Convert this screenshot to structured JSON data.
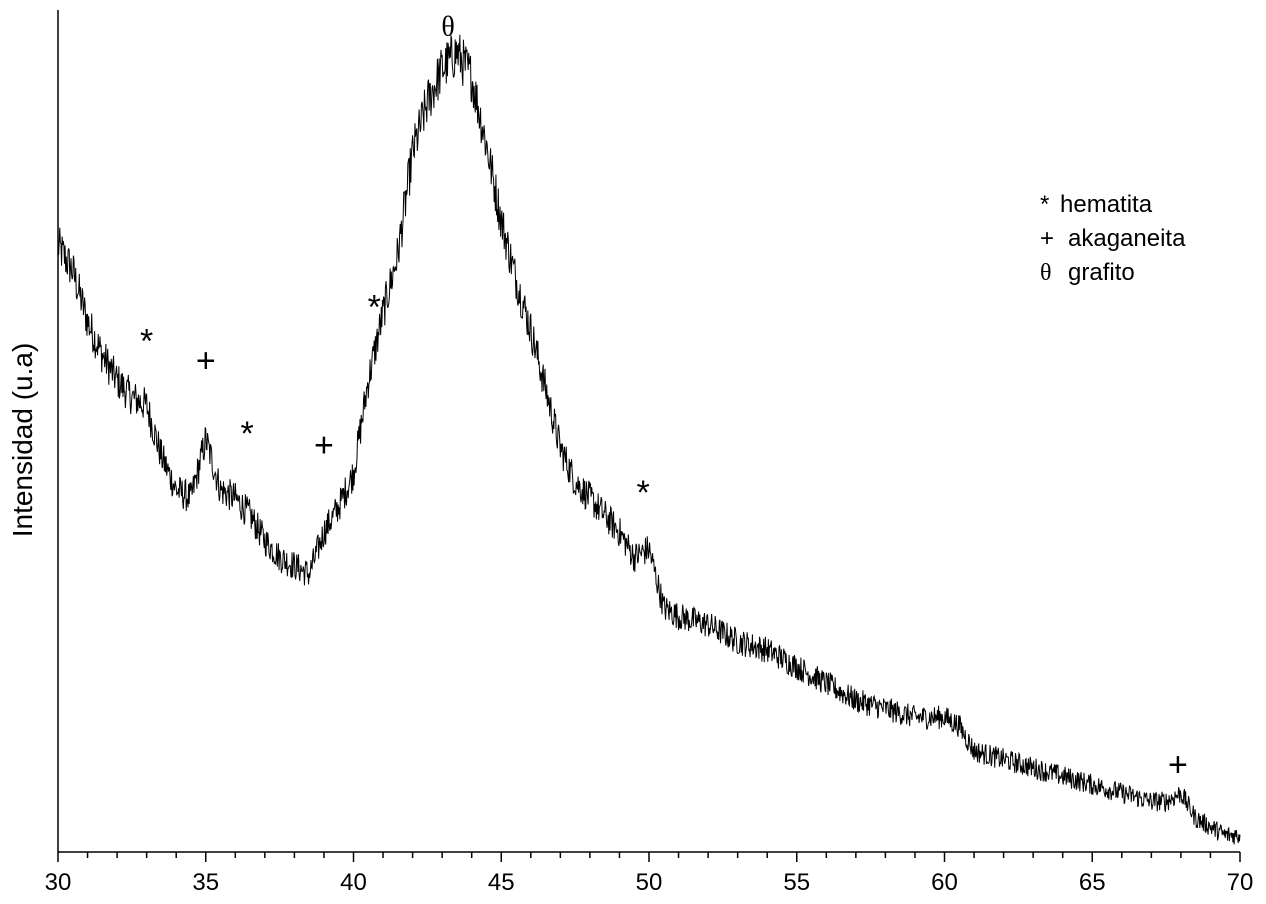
{
  "chart_data": {
    "type": "line",
    "title": "",
    "xlabel": "",
    "ylabel": "Intensidad (u.a)",
    "xlim": [
      30,
      70
    ],
    "ylim": [
      0,
      100
    ],
    "x_ticks": [
      "30",
      "35",
      "40",
      "45",
      "50",
      "55",
      "60",
      "65",
      "70"
    ],
    "x_minor_step": 1,
    "y_ticks_shown": false,
    "grid": false,
    "legend_position": "top-right",
    "legend": [
      {
        "symbol": "*",
        "label": "hematita"
      },
      {
        "symbol": "+",
        "label": "akaganeita"
      },
      {
        "symbol": "θ",
        "label": "grafito"
      }
    ],
    "annotations": [
      {
        "symbol": "*",
        "x": 33.0,
        "y": 61
      },
      {
        "symbol": "+",
        "x": 35.0,
        "y": 57
      },
      {
        "symbol": "*",
        "x": 36.4,
        "y": 50
      },
      {
        "symbol": "+",
        "x": 39.0,
        "y": 47
      },
      {
        "symbol": "*",
        "x": 40.7,
        "y": 65
      },
      {
        "symbol": "θ",
        "x": 43.2,
        "y": 97
      },
      {
        "symbol": "*",
        "x": 49.8,
        "y": 43
      },
      {
        "symbol": "+",
        "x": 67.9,
        "y": 9
      }
    ],
    "series": [
      {
        "values_x": [
          30,
          30.5,
          31,
          31.5,
          32,
          32.5,
          33,
          33.5,
          34,
          34.5,
          35,
          35.5,
          36,
          36.5,
          37,
          37.5,
          38,
          38.5,
          39,
          39.5,
          40,
          40.5,
          41,
          41.5,
          42,
          42.5,
          43,
          43.5,
          44,
          44.5,
          45,
          45.5,
          46,
          46.5,
          47,
          47.5,
          48,
          48.5,
          49,
          49.5,
          50,
          50.5,
          51,
          52,
          53,
          54,
          55,
          56,
          57,
          58,
          59,
          60,
          60.5,
          61,
          62,
          63,
          64,
          65,
          66,
          67,
          67.5,
          68,
          68.5,
          69,
          69.5,
          70
        ],
        "values_y": [
          72,
          69,
          63,
          59,
          56,
          54,
          53,
          47,
          43,
          42,
          49,
          43,
          42,
          40,
          37,
          35,
          34,
          33,
          38,
          41,
          45,
          56,
          64,
          71,
          83,
          89,
          93,
          95,
          92,
          84,
          75,
          68,
          62,
          55,
          48,
          44,
          42,
          40,
          38,
          35,
          36,
          29,
          28,
          27,
          25,
          24,
          22,
          20,
          18,
          17,
          16,
          16,
          15,
          12,
          11,
          10,
          9,
          8,
          7,
          6,
          6,
          7,
          4,
          3,
          2,
          2
        ]
      }
    ]
  }
}
